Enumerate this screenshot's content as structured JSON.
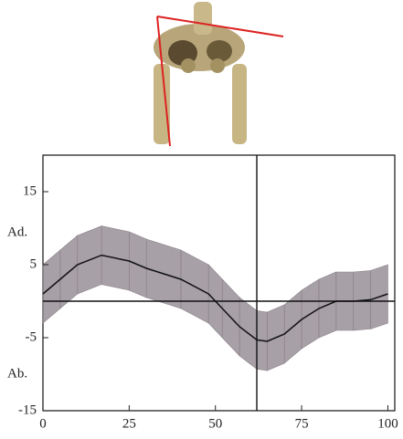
{
  "chart_data": {
    "type": "line",
    "x": [
      0,
      5,
      10,
      17,
      25,
      30,
      40,
      48,
      52,
      57,
      62,
      65,
      70,
      75,
      80,
      85,
      90,
      95,
      100
    ],
    "values": [
      1,
      3,
      5,
      6.3,
      5.5,
      4.5,
      3,
      1,
      -1,
      -3.5,
      -5.3,
      -5.5,
      -4.5,
      -2.5,
      -1,
      0,
      0,
      0.2,
      1
    ],
    "band": {
      "upper": [
        5,
        7,
        9,
        10.3,
        9.5,
        8.5,
        7,
        5,
        3,
        0.5,
        -1.3,
        -1.5,
        -0.5,
        1.5,
        3,
        4,
        4,
        4.2,
        5
      ],
      "lower": [
        -3,
        -1,
        1,
        2.3,
        1.5,
        0.5,
        -1,
        -3,
        -5,
        -7.5,
        -9.3,
        -9.5,
        -8.5,
        -6.5,
        -5,
        -4,
        -4,
        -3.8,
        -3
      ],
      "color": "#8a8088"
    },
    "color": "#111111",
    "xlim": [
      0,
      102
    ],
    "ylim": [
      -15,
      20
    ],
    "xticks": [
      0,
      25,
      50,
      75,
      100
    ],
    "yticks": [
      -15,
      -5,
      5,
      15
    ],
    "reference_y": 0,
    "marker_x": 62,
    "annotations": [
      "Ad.",
      "Ab."
    ]
  }
}
